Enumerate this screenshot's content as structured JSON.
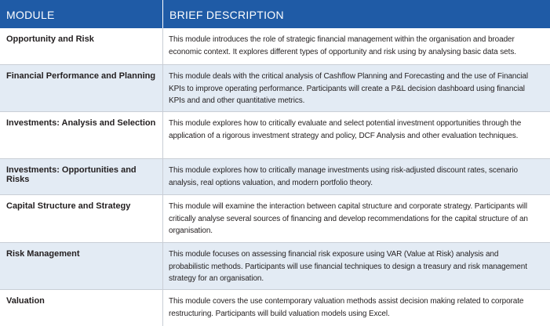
{
  "header": {
    "module": "MODULE",
    "description": "BRIEF DESCRIPTION"
  },
  "rows": [
    {
      "module": "Opportunity and Risk",
      "description": "This module introduces the role of strategic financial management within the organisation and broader economic context. It explores different types of opportunity and risk using by analysing basic data sets."
    },
    {
      "module": "Financial Performance and Planning",
      "description": "This module deals with the critical analysis of Cashflow Planning and Forecasting and the use of Financial KPIs to improve operating performance. Participants will create a P&L decision dashboard using financial KPIs and and other quantitative metrics."
    },
    {
      "module": "Investments: Analysis and Selection",
      "description": "This module explores how to critically evaluate and select potential investment opportunities through the application of a rigorous investment strategy and policy, DCF Analysis and other evaluation techniques."
    },
    {
      "module": "Investments: Opportunities and Risks",
      "description": "This module explores how to critically manage investments using risk-adjusted discount rates, scenario analysis, real options valuation, and modern portfolio theory."
    },
    {
      "module": "Capital Structure and Strategy",
      "description": "This module will examine the interaction between capital structure and corporate strategy. Participants will critically analyse several sources of financing and develop recommendations for the capital structure of an organisation."
    },
    {
      "module": "Risk Management",
      "description": "This module focuses on assessing financial risk exposure using VAR (Value at Risk) analysis and probabilistic methods. Participants will use financial techniques to design a treasury and risk management strategy for an organisation."
    },
    {
      "module": "Valuation",
      "description": "This module covers the use contemporary valuation methods assist decision making related to corporate restructuring.  Participants will build valuation models using Excel."
    }
  ],
  "colors": {
    "header_bg": "#1f5ba6",
    "alt_row_bg": "#e3ebf4"
  }
}
